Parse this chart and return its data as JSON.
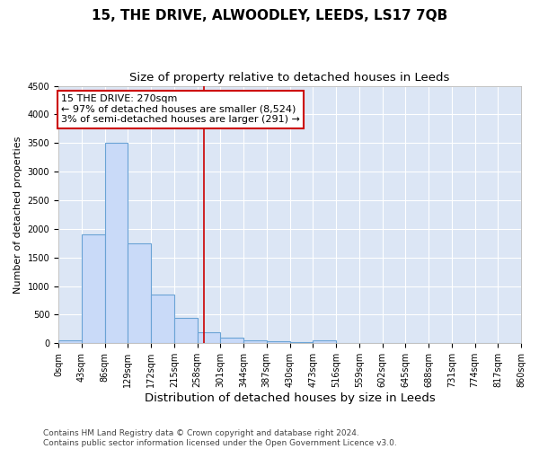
{
  "title": "15, THE DRIVE, ALWOODLEY, LEEDS, LS17 7QB",
  "subtitle": "Size of property relative to detached houses in Leeds",
  "xlabel": "Distribution of detached houses by size in Leeds",
  "ylabel": "Number of detached properties",
  "bins": [
    "0sqm",
    "43sqm",
    "86sqm",
    "129sqm",
    "172sqm",
    "215sqm",
    "258sqm",
    "301sqm",
    "344sqm",
    "387sqm",
    "430sqm",
    "473sqm",
    "516sqm",
    "559sqm",
    "602sqm",
    "645sqm",
    "688sqm",
    "731sqm",
    "774sqm",
    "817sqm",
    "860sqm"
  ],
  "values": [
    50,
    1900,
    3500,
    1750,
    850,
    450,
    200,
    100,
    55,
    30,
    20,
    50,
    0,
    0,
    0,
    0,
    0,
    0,
    0,
    0
  ],
  "bar_color": "#c9daf8",
  "bar_edge_color": "#6aa3d5",
  "ylim": [
    0,
    4500
  ],
  "bin_width": 43,
  "annotation_text": "15 THE DRIVE: 270sqm\n← 97% of detached houses are smaller (8,524)\n3% of semi-detached houses are larger (291) →",
  "annotation_box_color": "#ffffff",
  "annotation_box_edge": "#cc0000",
  "vline_color": "#cc0000",
  "vline_x": 270,
  "footer": "Contains HM Land Registry data © Crown copyright and database right 2024.\nContains public sector information licensed under the Open Government Licence v3.0.",
  "title_fontsize": 11,
  "subtitle_fontsize": 9.5,
  "xlabel_fontsize": 9.5,
  "ylabel_fontsize": 8,
  "tick_fontsize": 7,
  "footer_fontsize": 6.5,
  "annotation_fontsize": 8,
  "background_color": "#dce6f5"
}
